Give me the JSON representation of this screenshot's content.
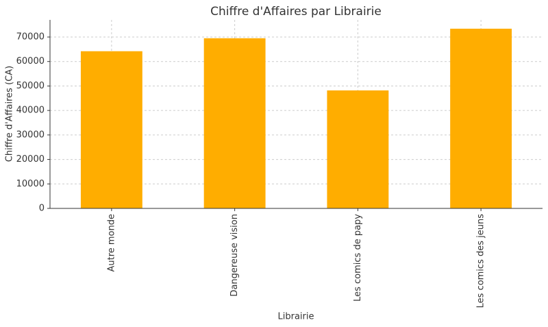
{
  "chart_data": {
    "type": "bar",
    "title": "Chiffre d'Affaires par Librairie",
    "x_label": "Librairie",
    "y_label": "Chiffre d'Affaires (CA)",
    "categories": [
      "Autre monde",
      "Dangereuse vision",
      "Les comics de papy",
      "Les comics des jeuns"
    ],
    "values": [
      64200,
      69500,
      48200,
      73400
    ],
    "color": "#ffad00",
    "ylim": [
      0,
      77000
    ],
    "yticks": [
      0,
      10000,
      20000,
      30000,
      40000,
      50000,
      60000,
      70000
    ],
    "grid": true
  }
}
